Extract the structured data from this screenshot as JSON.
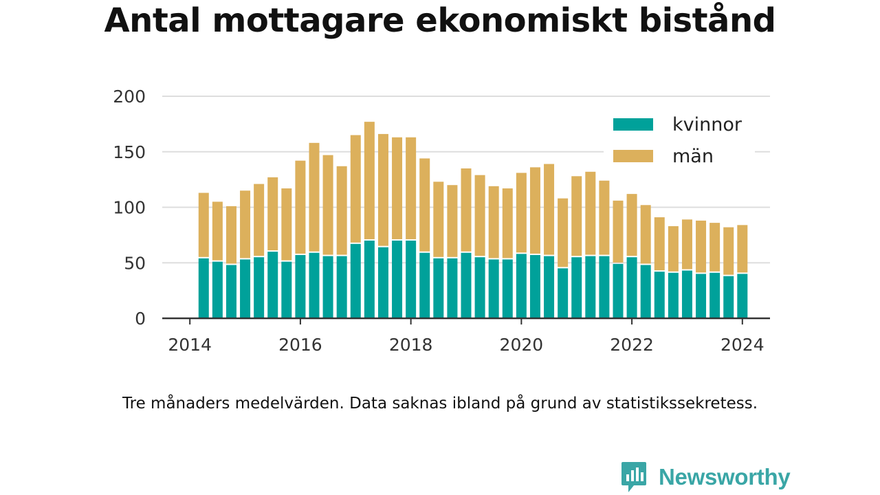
{
  "title": "Antal mottagare ekonomiskt bistånd",
  "note": "Tre månaders medelvärden. Data saknas ibland på grund av statistikssekretess.",
  "brand": "Newsworthy",
  "colors": {
    "kvinnor": "#00a19a",
    "man": "#dcb05c",
    "grid": "#dddddd",
    "axis": "#333333",
    "brand": "#3aa6a6"
  },
  "chart_data": {
    "type": "bar",
    "stacked": true,
    "title": "Antal mottagare ekonomiskt bistånd",
    "xlabel": "",
    "ylabel": "",
    "ylim": [
      0,
      200
    ],
    "yticks": [
      "0",
      "50",
      "100",
      "150",
      "200"
    ],
    "yticks_values": [
      0,
      50,
      100,
      150,
      200
    ],
    "xticks": [
      "2014",
      "2016",
      "2018",
      "2020",
      "2022",
      "2024"
    ],
    "xticks_values": [
      2014,
      2016,
      2018,
      2020,
      2022,
      2024
    ],
    "xlim": [
      2013.5,
      2024.5
    ],
    "grid": true,
    "legend_position": "top-right",
    "x": [
      2014.25,
      2014.5,
      2014.75,
      2015.0,
      2015.25,
      2015.5,
      2015.75,
      2016.0,
      2016.25,
      2016.5,
      2016.75,
      2017.0,
      2017.25,
      2017.5,
      2017.75,
      2018.0,
      2018.25,
      2018.5,
      2018.75,
      2019.0,
      2019.25,
      2019.5,
      2019.75,
      2020.0,
      2020.25,
      2020.5,
      2020.75,
      2021.0,
      2021.25,
      2021.5,
      2021.75,
      2022.0,
      2022.25,
      2022.5,
      2022.75,
      2023.0,
      2023.25,
      2023.5,
      2023.75,
      2024.0
    ],
    "series": [
      {
        "name": "kvinnor",
        "values": [
          54,
          51,
          48,
          53,
          55,
          60,
          51,
          57,
          59,
          56,
          56,
          67,
          70,
          64,
          70,
          70,
          59,
          54,
          54,
          59,
          55,
          53,
          53,
          58,
          57,
          56,
          45,
          55,
          56,
          56,
          49,
          55,
          48,
          42,
          41,
          43,
          40,
          41,
          38,
          40
        ]
      },
      {
        "name": "män",
        "values": [
          59,
          54,
          53,
          62,
          66,
          67,
          66,
          85,
          99,
          91,
          81,
          98,
          107,
          102,
          93,
          93,
          85,
          69,
          66,
          76,
          74,
          66,
          64,
          73,
          79,
          83,
          63,
          73,
          76,
          68,
          57,
          57,
          54,
          49,
          42,
          46,
          48,
          45,
          44,
          44
        ]
      }
    ]
  }
}
